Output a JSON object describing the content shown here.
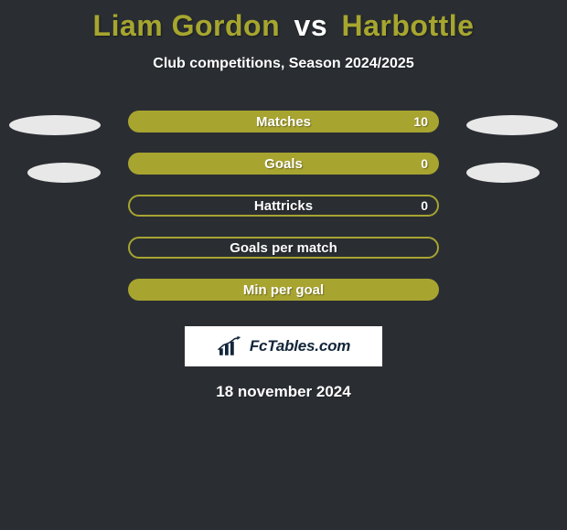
{
  "title": {
    "player1": "Liam Gordon",
    "vs": "vs",
    "player2": "Harbottle",
    "color_p1": "#a6a62f",
    "color_vs": "#ffffff",
    "color_p2": "#a6a62f"
  },
  "subtitle": "Club competitions, Season 2024/2025",
  "accent_color": "#a8a430",
  "border_color": "#a8a430",
  "bg_color": "#2a2e33",
  "ellipse_left_color": "#e8e8e8",
  "ellipse_right_color": "#e8e8e8",
  "stats": [
    {
      "label": "Matches",
      "value_right": "10",
      "fill": true,
      "fill_pct": 100
    },
    {
      "label": "Goals",
      "value_right": "0",
      "fill": true,
      "fill_pct": 100
    },
    {
      "label": "Hattricks",
      "value_right": "0",
      "fill": false,
      "fill_pct": 0
    },
    {
      "label": "Goals per match",
      "value_right": "",
      "fill": false,
      "fill_pct": 0
    },
    {
      "label": "Min per goal",
      "value_right": "",
      "fill": true,
      "fill_pct": 100
    }
  ],
  "logo_text": "FcTables.com",
  "date": "18 november 2024"
}
